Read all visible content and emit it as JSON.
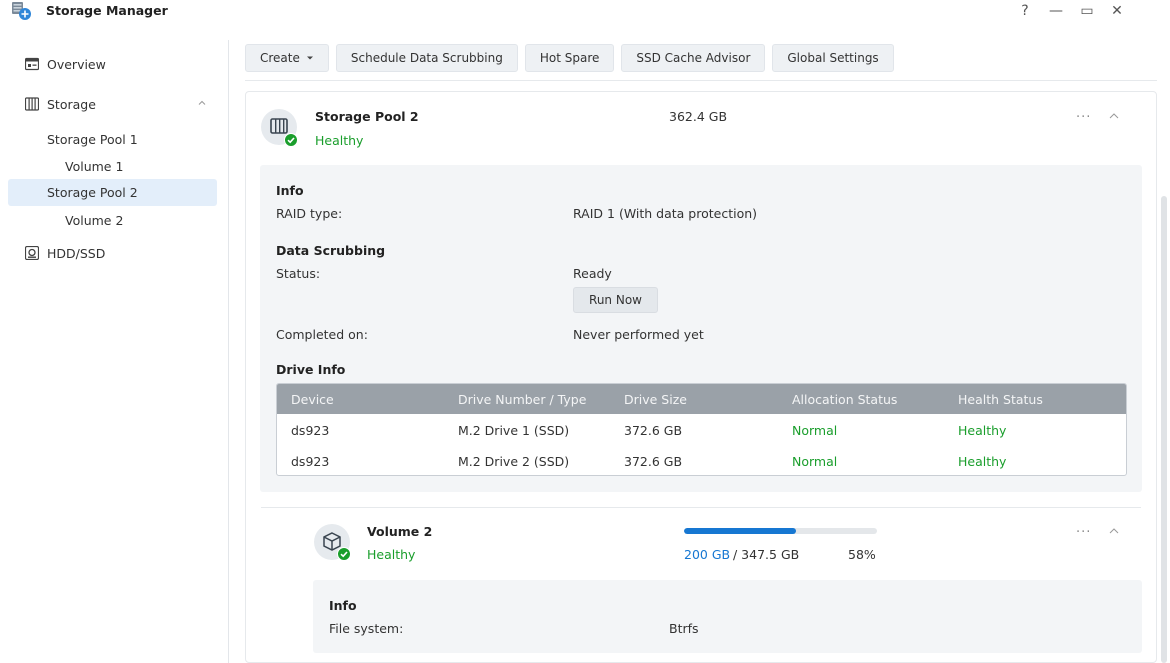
{
  "window": {
    "title": "Storage Manager",
    "controls": {
      "help": "?",
      "minimize": "—",
      "maximize": "▭",
      "close": "✕"
    }
  },
  "sidebar": {
    "items": [
      {
        "label": "Overview",
        "icon": "overview-icon"
      },
      {
        "label": "Storage",
        "icon": "storage-icon",
        "expanded": true
      },
      {
        "label": "Storage Pool 1"
      },
      {
        "label": "Volume 1"
      },
      {
        "label": "Storage Pool 2",
        "selected": true
      },
      {
        "label": "Volume 2"
      },
      {
        "label": "HDD/SSD",
        "icon": "hdd-icon"
      }
    ]
  },
  "toolbar": {
    "create_label": "Create",
    "schedule_label": "Schedule Data Scrubbing",
    "hot_spare_label": "Hot Spare",
    "ssd_cache_label": "SSD Cache Advisor",
    "global_settings_label": "Global Settings"
  },
  "pool": {
    "name": "Storage Pool 2",
    "status": "Healthy",
    "size": "362.4 GB",
    "info_title": "Info",
    "raid_label": "RAID type:",
    "raid_value": "RAID 1 (With data protection)",
    "scrub_title": "Data Scrubbing",
    "scrub_status_label": "Status:",
    "scrub_status_value": "Ready",
    "run_now_label": "Run Now",
    "completed_label": "Completed on:",
    "completed_value": "Never performed yet",
    "drive_info_title": "Drive Info",
    "drive_table": {
      "columns": [
        "Device",
        "Drive Number / Type",
        "Drive Size",
        "Allocation Status",
        "Health Status"
      ],
      "rows": [
        [
          "ds923",
          "M.2 Drive 1 (SSD)",
          "372.6 GB",
          "Normal",
          "Healthy"
        ],
        [
          "ds923",
          "M.2 Drive 2 (SSD)",
          "372.6 GB",
          "Normal",
          "Healthy"
        ]
      ]
    }
  },
  "volume": {
    "name": "Volume 2",
    "status": "Healthy",
    "used": "200 GB",
    "total": "/ 347.5 GB",
    "percent_label": "58%",
    "usage_fraction": 0.58,
    "info_title": "Info",
    "fs_label": "File system:",
    "fs_value": "Btrfs"
  },
  "colors": {
    "healthy": "#1a9e2c",
    "accent": "#1677d2",
    "selected_bg": "#e3eefa"
  }
}
